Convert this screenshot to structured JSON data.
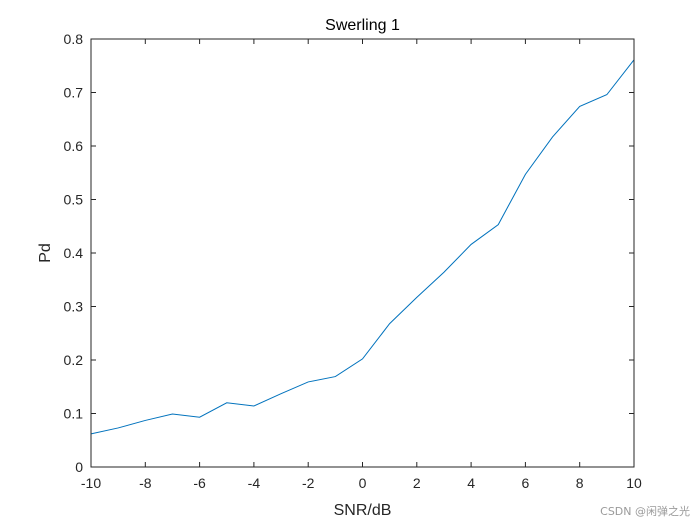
{
  "chart_data": {
    "type": "line",
    "title": "Swerling 1",
    "xlabel": "SNR/dB",
    "ylabel": "Pd",
    "xlim": [
      -10,
      10
    ],
    "ylim": [
      0,
      0.8
    ],
    "xticks": [
      -10,
      -8,
      -6,
      -4,
      -2,
      0,
      2,
      4,
      6,
      8,
      10
    ],
    "yticks": [
      0,
      0.1,
      0.2,
      0.3,
      0.4,
      0.5,
      0.6,
      0.7,
      0.8
    ],
    "grid": false,
    "series": [
      {
        "color": "#0072BD",
        "x": [
          -10,
          -9,
          -8,
          -7,
          -6,
          -5,
          -4,
          -3,
          -2,
          -1,
          0,
          1,
          2,
          3,
          4,
          5,
          6,
          7,
          8,
          9,
          10
        ],
        "y": [
          0.062,
          0.073,
          0.087,
          0.099,
          0.093,
          0.12,
          0.114,
          0.137,
          0.159,
          0.169,
          0.202,
          0.268,
          0.317,
          0.364,
          0.416,
          0.453,
          0.547,
          0.617,
          0.674,
          0.696,
          0.761
        ]
      }
    ]
  },
  "watermark": "CSDN @闲弹之光"
}
